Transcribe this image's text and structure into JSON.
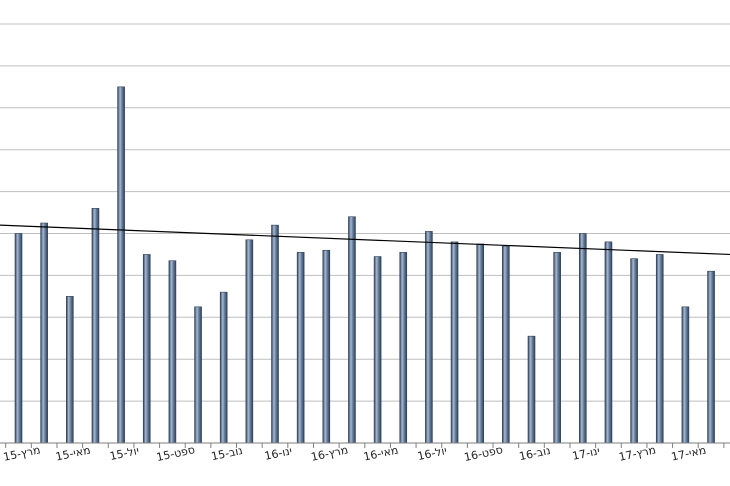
{
  "chart_data": {
    "type": "bar",
    "title": "",
    "xlabel": "",
    "ylabel": "",
    "ylim": [
      0,
      10
    ],
    "grid": true,
    "legend": "none",
    "tick_labels": [
      "מרץ-15",
      "מאי-15",
      "יול-15",
      "ספט-15",
      "נוב-15",
      "ינו-16",
      "מרץ-16",
      "מאי-16",
      "יול-16",
      "ספט-16",
      "נוב-16",
      "ינו-17",
      "מרץ-17",
      "מאי-17"
    ],
    "values": [
      5.0,
      5.25,
      3.5,
      5.6,
      8.5,
      4.5,
      4.35,
      3.25,
      3.6,
      4.85,
      5.2,
      4.55,
      4.6,
      5.4,
      4.45,
      4.55,
      5.05,
      4.8,
      4.75,
      4.7,
      2.55,
      4.55,
      5.0,
      4.8,
      4.4,
      4.5,
      3.25,
      4.1
    ],
    "trendline": {
      "start": 5.2,
      "end": 4.5
    },
    "colors": {
      "bar": "#5b7290",
      "bar_dark": "#2f4159",
      "bar_light": "#a9bad0",
      "grid": "#bfbfbf",
      "axis": "#7f7f7f",
      "trend": "#000000"
    }
  }
}
